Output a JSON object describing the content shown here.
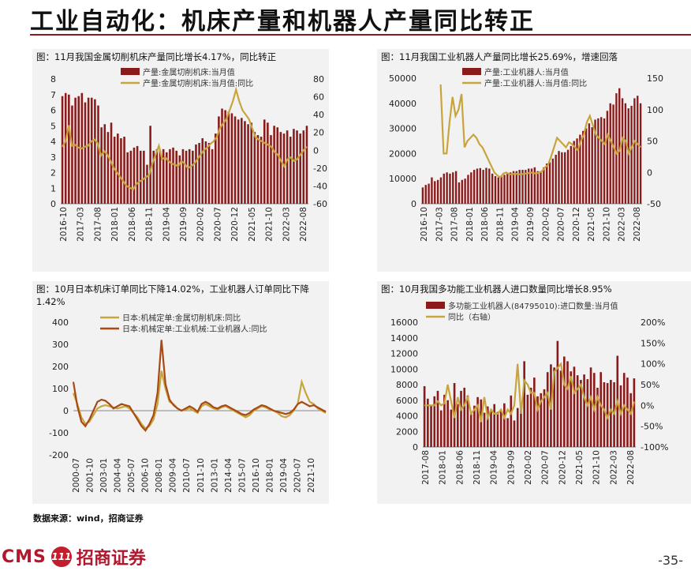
{
  "header": {
    "title": "工业自动化：机床产量和机器人产量同比转正"
  },
  "footer": {
    "source": "数据来源：wind，招商证券",
    "logo_text": "CMS",
    "logo_badge": "111",
    "logo_cn": "招商证券",
    "page_number": "-35-"
  },
  "colors": {
    "accent": "#8b1a1a",
    "bar": "#8b1a1a",
    "line_gold": "#c8a53c",
    "line_brown": "#a84a14"
  },
  "chart_data": [
    {
      "type": "bar",
      "title": "图：11月我国金属切削机床产量同比增长4.17%，同比转正",
      "x_tick_labels": [
        "2016-10",
        "2017-03",
        "2017-08",
        "2018-01",
        "2018-06",
        "2018-11",
        "2019-04",
        "2019-09",
        "2020-02",
        "2020-07",
        "2020-12",
        "2021-05",
        "2021-10",
        "2022-03",
        "2022-08"
      ],
      "ylim_left": [
        0,
        8
      ],
      "yticks_left": [
        0,
        1,
        2,
        3,
        4,
        5,
        6,
        7,
        8
      ],
      "ylim_right": [
        -60,
        80
      ],
      "yticks_right": [
        -60,
        -40,
        -20,
        0,
        20,
        40,
        60,
        80
      ],
      "series": [
        {
          "name": "产量:金属切削机床:当月值",
          "axis": "left",
          "type": "bar",
          "values": [
            6.9,
            7.1,
            7.0,
            6.3,
            6.8,
            6.9,
            7.1,
            6.5,
            6.8,
            6.8,
            6.7,
            6.3,
            4.9,
            5.1,
            4.6,
            5.2,
            4.3,
            4.5,
            4.2,
            4.3,
            3.3,
            3.4,
            3.6,
            3.7,
            3.4,
            3.4,
            2.5,
            5.0,
            3.4,
            3.5,
            3.4,
            3.5,
            3.3,
            3.5,
            3.6,
            3.4,
            3.1,
            3.5,
            3.4,
            3.5,
            3.4,
            3.8,
            3.9,
            4.2,
            4.0,
            3.9,
            3.5,
            4.5,
            5.6,
            6.1,
            6.0,
            5.9,
            5.8,
            5.6,
            5.4,
            5.5,
            5.3,
            5.1,
            5.2,
            4.6,
            4.4,
            4.3,
            5.4,
            5.2,
            4.4,
            5.0,
            4.9,
            4.6,
            4.5,
            4.7,
            4.3,
            4.8,
            4.7,
            4.5,
            4.7,
            5.0
          ]
        },
        {
          "name": "产量:金属切削机床:当月值:同比",
          "axis": "right",
          "type": "line",
          "values": [
            4,
            10,
            28,
            5,
            6,
            3,
            2,
            4,
            5,
            10,
            12,
            8,
            -6,
            -1,
            -5,
            -12,
            -20,
            -25,
            -30,
            -35,
            -40,
            -42,
            -44,
            -38,
            -35,
            -33,
            -30,
            -28,
            -15,
            -5,
            5,
            -10,
            -8,
            -12,
            -15,
            -16,
            -18,
            -12,
            -15,
            -20,
            -18,
            -15,
            -10,
            -5,
            0,
            3,
            7,
            10,
            15,
            25,
            30,
            35,
            45,
            55,
            68,
            55,
            45,
            40,
            35,
            25,
            15,
            12,
            10,
            8,
            6,
            4,
            -2,
            -5,
            -12,
            -18,
            -10,
            -8,
            -12,
            -10,
            -5,
            0,
            4
          ]
        }
      ]
    },
    {
      "type": "bar",
      "title": "图：11月我国工业机器人产量同比增长25.69%，增速回落",
      "x_tick_labels": [
        "2016-10",
        "2017-03",
        "2017-08",
        "2018-01",
        "2018-06",
        "2018-11",
        "2019-04",
        "2019-09",
        "2020-02",
        "2020-07",
        "2020-12",
        "2021-05",
        "2021-10",
        "2022-03",
        "2022-08"
      ],
      "ylim_left": [
        0,
        50000
      ],
      "yticks_left": [
        0,
        10000,
        20000,
        30000,
        40000,
        50000
      ],
      "ylim_right": [
        -50,
        150
      ],
      "yticks_right": [
        -50,
        0,
        50,
        100,
        150
      ],
      "series": [
        {
          "name": "产量:工业机器人:当月值",
          "axis": "left",
          "type": "bar",
          "values": [
            6500,
            7500,
            8000,
            10500,
            9000,
            9500,
            10500,
            12000,
            12500,
            12000,
            12500,
            13000,
            8500,
            9500,
            10000,
            11500,
            12500,
            13500,
            14000,
            14200,
            13500,
            14300,
            14000,
            12000,
            11000,
            10500,
            11000,
            11500,
            12000,
            12500,
            13000,
            13000,
            13500,
            13500,
            13500,
            14000,
            14000,
            14500,
            13000,
            12500,
            14500,
            16000,
            16500,
            18000,
            19500,
            21000,
            20500,
            20500,
            21500,
            23000,
            25000,
            26000,
            27500,
            29000,
            30000,
            32000,
            30500,
            33500,
            34000,
            34500,
            34000,
            37000,
            40000,
            39500,
            44000,
            46000,
            42000,
            40000,
            38000,
            39000,
            42000,
            43000,
            40000
          ]
        },
        {
          "name": "产量:工业机器人:当月值:同比",
          "axis": "right",
          "type": "line",
          "values": [
            null,
            null,
            null,
            null,
            null,
            null,
            140,
            30,
            30,
            80,
            120,
            90,
            100,
            125,
            40,
            50,
            55,
            60,
            55,
            45,
            40,
            30,
            20,
            10,
            0,
            -5,
            -8,
            -2,
            0,
            -3,
            -3,
            -2,
            -3,
            -3,
            -2,
            -2,
            0,
            -1,
            -2,
            0,
            2,
            8,
            12,
            25,
            40,
            55,
            50,
            45,
            40,
            48,
            45,
            40,
            35,
            50,
            60,
            80,
            90,
            75,
            60,
            55,
            50,
            45,
            60,
            50,
            40,
            30,
            35,
            55,
            50,
            30,
            40,
            50,
            45,
            40
          ]
        }
      ]
    },
    {
      "type": "line",
      "title": "图：10月日本机床订单同比下降14.02%，工业机器人订单同比下降1.42%",
      "x_tick_labels": [
        "2000-07",
        "2001-10",
        "2003-01",
        "2004-04",
        "2005-07",
        "2006-10",
        "2008-01",
        "2009-04",
        "2010-07",
        "2011-10",
        "2013-01",
        "2014-04",
        "2015-07",
        "2016-10",
        "2018-01",
        "2019-04",
        "2020-07",
        "2021-10"
      ],
      "ylim": [
        -200,
        400
      ],
      "yticks": [
        -200,
        -100,
        0,
        100,
        200,
        300,
        400
      ],
      "series": [
        {
          "name": "日本:机械定单:金属切削机床:同比",
          "values": [
            80,
            30,
            -30,
            -60,
            -50,
            -20,
            10,
            20,
            25,
            20,
            15,
            10,
            15,
            20,
            10,
            -10,
            -30,
            -60,
            -80,
            -70,
            -40,
            30,
            180,
            100,
            40,
            30,
            10,
            0,
            5,
            10,
            0,
            -10,
            20,
            30,
            20,
            10,
            5,
            15,
            20,
            10,
            0,
            -10,
            -20,
            -30,
            -20,
            0,
            10,
            20,
            15,
            5,
            0,
            -10,
            -25,
            -30,
            -20,
            0,
            30,
            130,
            80,
            40,
            30,
            10,
            0,
            -10
          ]
        },
        {
          "name": "日本:机械定单:工业机械:工业机器人:同比",
          "values": [
            130,
            20,
            -50,
            -70,
            -40,
            0,
            40,
            50,
            45,
            30,
            10,
            20,
            30,
            25,
            20,
            -10,
            -40,
            -70,
            -90,
            -60,
            -20,
            80,
            320,
            120,
            50,
            25,
            10,
            0,
            10,
            20,
            10,
            -5,
            30,
            40,
            30,
            15,
            10,
            20,
            25,
            15,
            5,
            -5,
            -15,
            -20,
            -10,
            5,
            15,
            25,
            20,
            10,
            0,
            -5,
            -10,
            -15,
            -10,
            5,
            30,
            40,
            30,
            20,
            25,
            15,
            5,
            -5
          ]
        }
      ]
    },
    {
      "type": "bar",
      "title": "图：10月我国多功能工业机器人进口数量同比增长8.95%",
      "x_tick_labels": [
        "2017-08",
        "2018-01",
        "2018-06",
        "2018-11",
        "2019-04",
        "2019-09",
        "2020-02",
        "2020-07",
        "2020-12",
        "2021-05",
        "2021-10",
        "2022-03",
        "2022-08"
      ],
      "ylim_left": [
        0,
        16000
      ],
      "yticks_left": [
        0,
        2000,
        4000,
        6000,
        8000,
        10000,
        12000,
        14000,
        16000
      ],
      "ylim_right": [
        -100,
        200
      ],
      "yticks_right": [
        "-100%",
        "-50%",
        "0%",
        "50%",
        "100%",
        "150%",
        "200%"
      ],
      "series": [
        {
          "name": "多功能工业机器人(84795010):进口数量:当月值",
          "axis": "left",
          "type": "bar",
          "values": [
            7800,
            6200,
            5300,
            6500,
            7200,
            4700,
            6700,
            6000,
            4800,
            8200,
            5500,
            7200,
            7600,
            6600,
            4400,
            5300,
            6400,
            6100,
            4400,
            5200,
            4800,
            5500,
            4500,
            4600,
            5600,
            3700,
            6600,
            3400,
            5000,
            5100,
            11000,
            6700,
            7600,
            8900,
            6500,
            6900,
            7400,
            9600,
            10600,
            10200,
            13600,
            9800,
            11600,
            11000,
            9700,
            10300,
            9200,
            8600,
            9300,
            8700,
            10200,
            9500,
            7600,
            9600,
            8300,
            8200,
            8600,
            8300,
            11700,
            7900,
            9500,
            8900,
            6900,
            8800
          ]
        },
        {
          "name": "同比（右轴）",
          "axis": "right",
          "type": "line",
          "values": [
            0,
            0,
            0,
            0,
            10,
            0,
            5,
            50,
            10,
            -30,
            20,
            -10,
            0,
            20,
            -20,
            -10,
            0,
            -40,
            20,
            -30,
            -10,
            -20,
            -20,
            -10,
            -30,
            -10,
            -20,
            0,
            100,
            -20,
            60,
            50,
            30,
            30,
            -10,
            10,
            20,
            30,
            -10,
            80,
            90,
            100,
            50,
            40,
            70,
            30,
            40,
            50,
            20,
            0,
            20,
            -10,
            20,
            0,
            -10,
            -30,
            -10,
            -20,
            10,
            -20,
            0,
            -10,
            -20,
            9
          ]
        }
      ]
    }
  ]
}
